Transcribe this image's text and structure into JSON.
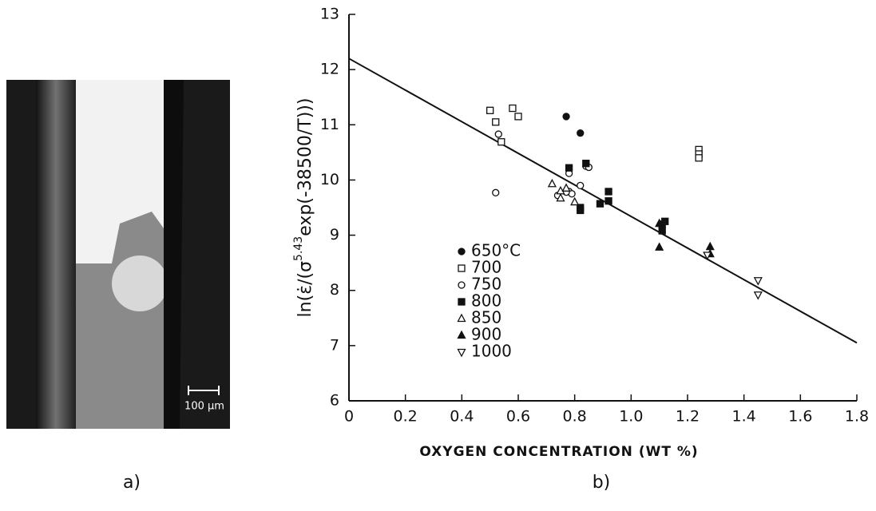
{
  "panels": {
    "a": "a)",
    "b": "b)"
  },
  "scale_bar_label": "100 µm",
  "chart_data": {
    "type": "scatter",
    "y_label": [
      "ln(ε̇/(σ",
      "5.43",
      "exp(-38500/T)))"
    ],
    "x_label": "OXYGEN CONCENTRATION (WT %)",
    "xlim": [
      0,
      1.8
    ],
    "ylim": [
      6,
      13
    ],
    "xticks": [
      0,
      0.2,
      0.4,
      0.6,
      0.8,
      {
        "value": 1,
        "label": "1.0"
      },
      1.2,
      1.4,
      1.6,
      1.8
    ],
    "yticks": [
      6,
      7,
      8,
      9,
      10,
      11,
      12,
      13
    ],
    "fit": {
      "x": [
        0,
        1.8
      ],
      "y": [
        12.2,
        7.05
      ]
    },
    "series": [
      {
        "name": "650°C",
        "marker": "circle",
        "filled": true,
        "color": "#111",
        "x": [
          0.77,
          0.82
        ],
        "y": [
          11.15,
          10.85
        ]
      },
      {
        "name": "700",
        "marker": "square",
        "filled": false,
        "color": "#111",
        "x": [
          0.5,
          0.52,
          0.58,
          0.6,
          0.54,
          1.24,
          1.24,
          1.24
        ],
        "y": [
          11.26,
          11.05,
          11.3,
          11.15,
          10.69,
          10.55,
          10.47,
          10.4
        ]
      },
      {
        "name": "750",
        "marker": "circle",
        "filled": false,
        "color": "#111",
        "x": [
          0.53,
          0.52,
          0.84,
          0.85,
          0.82,
          0.74,
          0.78,
          0.79,
          0.77,
          0.78
        ],
        "y": [
          10.83,
          9.77,
          10.25,
          10.23,
          9.9,
          9.72,
          9.79,
          9.75,
          9.78,
          10.12
        ]
      },
      {
        "name": "800",
        "marker": "square",
        "filled": true,
        "color": "#111",
        "x": [
          0.78,
          0.84,
          0.82,
          0.82,
          0.92,
          0.92,
          0.89,
          1.11,
          1.12,
          1.11
        ],
        "y": [
          10.22,
          10.3,
          9.5,
          9.45,
          9.79,
          9.62,
          9.57,
          9.2,
          9.25,
          9.08
        ]
      },
      {
        "name": "850",
        "marker": "triangle-up",
        "filled": false,
        "color": "#111",
        "x": [
          0.72,
          0.75,
          0.8,
          0.75,
          0.77
        ],
        "y": [
          9.93,
          9.67,
          9.6,
          9.8,
          9.85
        ]
      },
      {
        "name": "900",
        "marker": "triangle-up",
        "filled": true,
        "color": "#111",
        "x": [
          1.1,
          1.1,
          1.28,
          1.28
        ],
        "y": [
          8.78,
          9.21,
          8.79,
          8.66
        ]
      },
      {
        "name": "1000",
        "marker": "triangle-down",
        "filled": false,
        "color": "#111",
        "x": [
          1.27,
          1.45,
          1.45
        ],
        "y": [
          8.64,
          8.18,
          7.92
        ]
      }
    ]
  }
}
